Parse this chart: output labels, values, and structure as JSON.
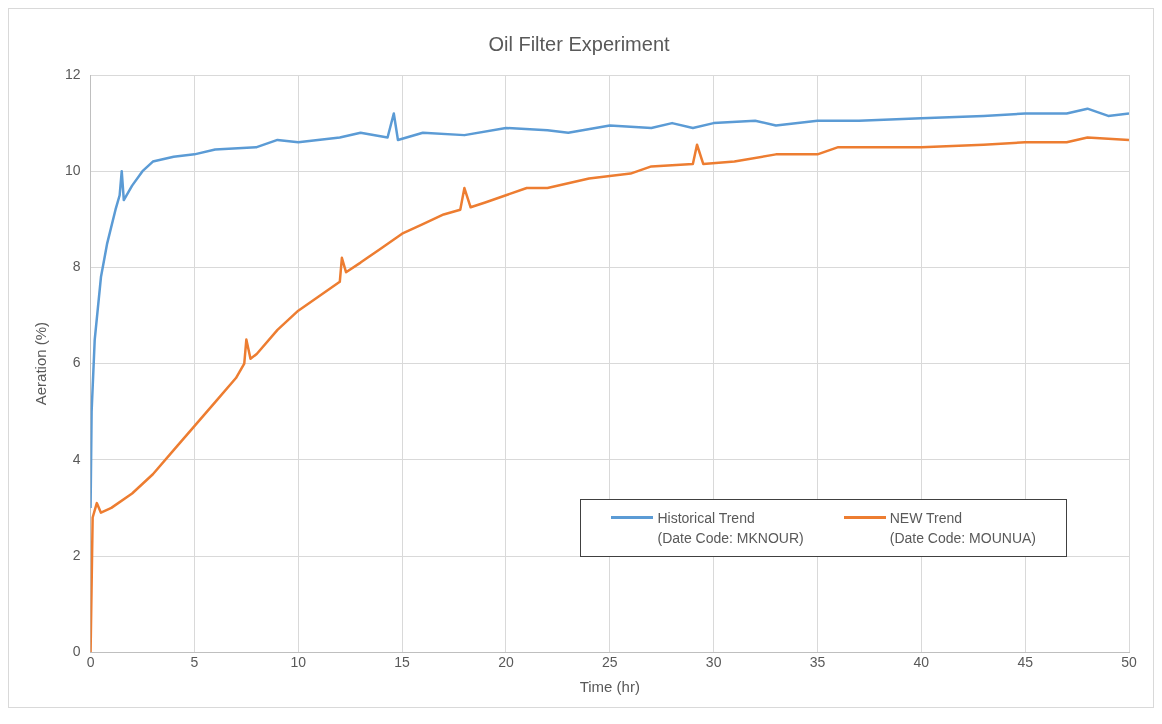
{
  "chart_data": {
    "type": "line",
    "title": "Oil Filter Experiment",
    "xlabel": "Time (hr)",
    "ylabel": "Aeration (%)",
    "xlim": [
      0,
      50
    ],
    "xticks": [
      0,
      5,
      10,
      15,
      20,
      25,
      30,
      35,
      40,
      45,
      50
    ],
    "ylim": [
      0,
      12
    ],
    "yticks": [
      0,
      2,
      4,
      6,
      8,
      10,
      12
    ],
    "grid": true,
    "legend": "bottom right",
    "marker": "none",
    "line_style": "solid",
    "series": [
      {
        "name": "Historical Trend\n(Date Code: MKNOUR)",
        "color": "#5b9bd5",
        "x": [
          0,
          0.05,
          0.2,
          0.5,
          0.8,
          1.2,
          1.4,
          1.5,
          1.6,
          2,
          2.5,
          3,
          4,
          5,
          6,
          8,
          9,
          10,
          12,
          13,
          14.3,
          14.6,
          14.8,
          16,
          18,
          20,
          22,
          23,
          25,
          27,
          28,
          29,
          30,
          32,
          33,
          35,
          37,
          40,
          43,
          45,
          47,
          48,
          49,
          50
        ],
        "values": [
          3.0,
          5.0,
          6.5,
          7.8,
          8.5,
          9.2,
          9.5,
          10.0,
          9.4,
          9.7,
          10.0,
          10.2,
          10.3,
          10.35,
          10.45,
          10.5,
          10.65,
          10.6,
          10.7,
          10.8,
          10.7,
          11.2,
          10.65,
          10.8,
          10.75,
          10.9,
          10.85,
          10.8,
          10.95,
          10.9,
          11.0,
          10.9,
          11.0,
          11.05,
          10.95,
          11.05,
          11.05,
          11.1,
          11.15,
          11.2,
          11.2,
          11.3,
          11.15,
          11.2
        ]
      },
      {
        "name": "NEW Trend\n(Date Code: MOUNUA)",
        "color": "#ed7d31",
        "x": [
          0,
          0.1,
          0.3,
          0.5,
          1,
          2,
          3,
          4,
          5,
          6,
          7,
          7.4,
          7.5,
          7.7,
          8,
          9,
          10,
          11,
          12,
          12.1,
          12.3,
          13,
          14,
          15,
          16,
          17,
          17.8,
          18,
          18.3,
          19,
          20,
          21,
          22,
          24,
          26,
          27,
          29,
          29.2,
          29.5,
          31,
          33,
          35,
          36,
          38,
          40,
          43,
          45,
          47,
          48,
          50
        ],
        "values": [
          0,
          2.8,
          3.1,
          2.9,
          3.0,
          3.3,
          3.7,
          4.2,
          4.7,
          5.2,
          5.7,
          6.0,
          6.5,
          6.1,
          6.2,
          6.7,
          7.1,
          7.4,
          7.7,
          8.2,
          7.9,
          8.1,
          8.4,
          8.7,
          8.9,
          9.1,
          9.2,
          9.65,
          9.25,
          9.35,
          9.5,
          9.65,
          9.65,
          9.85,
          9.95,
          10.1,
          10.15,
          10.55,
          10.15,
          10.2,
          10.35,
          10.35,
          10.5,
          10.5,
          10.5,
          10.55,
          10.6,
          10.6,
          10.7,
          10.65
        ]
      }
    ]
  }
}
